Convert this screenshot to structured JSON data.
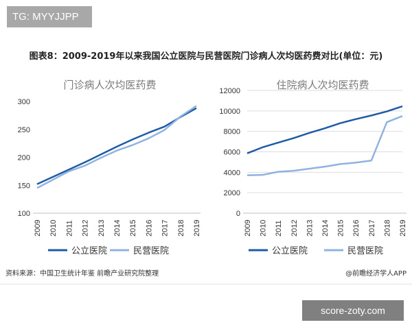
{
  "watermark_tag": "TG: MYYJJPP",
  "figure_title": "图表8：2009-2019年以来我国公立医院与民营医院门诊病人次均医药费对比(单位：元)",
  "source_note": "资料来源：中国卫生统计年鉴 前瞻产业研究院整理",
  "credit": "@前瞻经济学人APP",
  "site_label": "score-zoty.com",
  "colors": {
    "public": "#1f5aa6",
    "private": "#8fb3e0",
    "grid": "#dddddd",
    "axis_text": "#333333",
    "title_text": "#7a7a7a"
  },
  "chart_data": [
    {
      "type": "line",
      "title": "门诊病人次均医药费",
      "x": [
        "2009",
        "2010",
        "2011",
        "2012",
        "2013",
        "2014",
        "2015",
        "2016",
        "2017",
        "2018",
        "2019"
      ],
      "ylim": [
        100,
        300
      ],
      "yticks": [
        100,
        150,
        200,
        250,
        300
      ],
      "series": [
        {
          "name": "公立医院",
          "values": [
            152,
            165,
            178,
            191,
            205,
            219,
            232,
            244,
            255,
            272,
            288
          ]
        },
        {
          "name": "民营医院",
          "values": [
            145,
            160,
            175,
            185,
            199,
            212,
            222,
            234,
            249,
            273,
            292
          ]
        }
      ],
      "legend_position": "bottom"
    },
    {
      "type": "line",
      "title": "住院病人次均医药费",
      "x": [
        "2009",
        "2010",
        "2011",
        "2012",
        "2013",
        "2014",
        "2015",
        "2016",
        "2017",
        "2018",
        "2019"
      ],
      "ylim": [
        0,
        12000
      ],
      "yticks": [
        0,
        2000,
        4000,
        6000,
        8000,
        10000,
        12000
      ],
      "series": [
        {
          "name": "公立医院",
          "values": [
            5850,
            6450,
            6900,
            7350,
            7850,
            8300,
            8800,
            9200,
            9550,
            9950,
            10450
          ]
        },
        {
          "name": "民营医院",
          "values": [
            3700,
            3750,
            4050,
            4150,
            4350,
            4550,
            4800,
            4950,
            5150,
            8900,
            9500
          ]
        }
      ],
      "legend_position": "bottom"
    }
  ]
}
